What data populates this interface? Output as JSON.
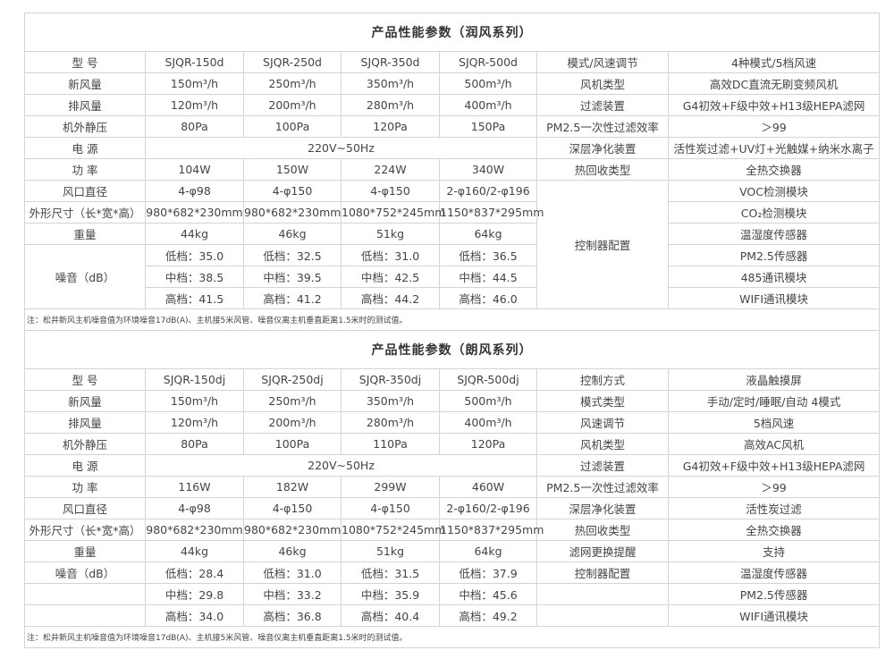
{
  "tables": [
    {
      "title": "产品性能参数（润风系列）",
      "rows": [
        {
          "label": "型  号",
          "values": [
            "SJQR-150d",
            "SJQR-250d",
            "SJQR-350d",
            "SJQR-500d"
          ],
          "feature": "模式/风速调节",
          "feature_value": "4种模式/5档风速"
        },
        {
          "label": "新风量",
          "values": [
            "150m³/h",
            "250m³/h",
            "350m³/h",
            "500m³/h"
          ],
          "feature": "风机类型",
          "feature_value": "高效DC直流无刷变频风机"
        },
        {
          "label": "排风量",
          "values": [
            "120m³/h",
            "200m³/h",
            "280m³/h",
            "400m³/h"
          ],
          "feature": "过滤装置",
          "feature_value": "G4初效+F级中效+H13级HEPA滤网"
        },
        {
          "label": "机外静压",
          "values": [
            "80Pa",
            "100Pa",
            "120Pa",
            "150Pa"
          ],
          "feature": "PM2.5一次性过滤效率",
          "feature_value": "＞99"
        },
        {
          "label": "电  源",
          "values": "220V~50Hz",
          "feature": "深层净化装置",
          "feature_value": "活性炭过滤+UV灯+光触媒+纳米水离子"
        },
        {
          "label": "功  率",
          "values": [
            "104W",
            "150W",
            "224W",
            "340W"
          ],
          "feature": "热回收类型",
          "feature_value": "全热交换器"
        },
        {
          "label": "风口直径",
          "values": [
            "4-φ98",
            "4-φ150",
            "4-φ150",
            "2-φ160/2-φ196"
          ],
          "feature": "控制器配置",
          "feature_value": "VOC检测模块"
        },
        {
          "label": "外形尺寸（长*宽*高）",
          "values": [
            "980*682*230mm",
            "980*682*230mm",
            "1080*752*245mm",
            "1150*837*295mm"
          ],
          "feature_value": "CO₂检测模块"
        },
        {
          "label": "重量",
          "values": [
            "44kg",
            "46kg",
            "51kg",
            "64kg"
          ],
          "feature_value": "温湿度传感器"
        },
        {
          "label": "噪音（dB）",
          "values": [
            "低档：35.0",
            "低档：32.5",
            "低档：31.0",
            "低档：36.5"
          ],
          "feature_value": "PM2.5传感器"
        },
        {
          "values": [
            "中档：38.5",
            "中档：39.5",
            "中档：42.5",
            "中档：44.5"
          ],
          "feature_value": "485通讯模块"
        },
        {
          "values": [
            "高档：41.5",
            "高档：41.2",
            "高档：44.2",
            "高档：46.0"
          ],
          "feature_value": "WIFI通讯模块"
        }
      ],
      "note": "注：松井新风主机噪音值为环境噪音17dB(A)、主机接5米风管、噪音仪离主机垂直距离1.5米时的测试值。"
    },
    {
      "title": "产品性能参数（朗风系列）",
      "rows": [
        {
          "label": "型  号",
          "values": [
            "SJQR-150dj",
            "SJQR-250dj",
            "SJQR-350dj",
            "SJQR-500dj"
          ],
          "feature": "控制方式",
          "feature_value": "液晶触摸屏"
        },
        {
          "label": "新风量",
          "values": [
            "150m³/h",
            "250m³/h",
            "350m³/h",
            "500m³/h"
          ],
          "feature": "模式类型",
          "feature_value": "手动/定时/睡眠/自动 4模式"
        },
        {
          "label": "排风量",
          "values": [
            "120m³/h",
            "200m³/h",
            "280m³/h",
            "400m³/h"
          ],
          "feature": "风速调节",
          "feature_value": "5档风速"
        },
        {
          "label": "机外静压",
          "values": [
            "80Pa",
            "100Pa",
            "110Pa",
            "120Pa"
          ],
          "feature": "风机类型",
          "feature_value": "高效AC风机"
        },
        {
          "label": "电  源",
          "values": "220V~50Hz",
          "feature": "过滤装置",
          "feature_value": "G4初效+F级中效+H13级HEPA滤网"
        },
        {
          "label": "功  率",
          "values": [
            "116W",
            "182W",
            "299W",
            "460W"
          ],
          "feature": "PM2.5一次性过滤效率",
          "feature_value": "＞99"
        },
        {
          "label": "风口直径",
          "values": [
            "4-φ98",
            "4-φ150",
            "4-φ150",
            "2-φ160/2-φ196"
          ],
          "feature": "深层净化装置",
          "feature_value": "活性炭过滤"
        },
        {
          "label": "外形尺寸（长*宽*高）",
          "values": [
            "980*682*230mm",
            "980*682*230mm",
            "1080*752*245mm",
            "1150*837*295mm"
          ],
          "feature": "热回收类型",
          "feature_value": "全热交换器"
        },
        {
          "label": "重量",
          "values": [
            "44kg",
            "46kg",
            "51kg",
            "64kg"
          ],
          "feature": "滤网更换提醒",
          "feature_value": "支持"
        },
        {
          "label": "噪音（dB）",
          "values": [
            "低档：28.4",
            "低档：31.0",
            "低档：31.5",
            "低档：37.9"
          ],
          "feature": "控制器配置",
          "feature_value": "温湿度传感器"
        },
        {
          "label": "",
          "values": [
            "中档：29.8",
            "中档：33.2",
            "中档：35.9",
            "中档：45.6"
          ],
          "feature": "",
          "feature_value": "PM2.5传感器"
        },
        {
          "label": "",
          "values": [
            "高档：34.0",
            "高档：36.8",
            "高档：40.4",
            "高档：49.2"
          ],
          "feature": "",
          "feature_value": "WIFI通讯模块"
        }
      ],
      "note": "注：松井新风主机噪音值为环境噪音17dB(A)、主机接5米风管、噪音仪离主机垂直距离1.5米时的测试值。"
    }
  ]
}
